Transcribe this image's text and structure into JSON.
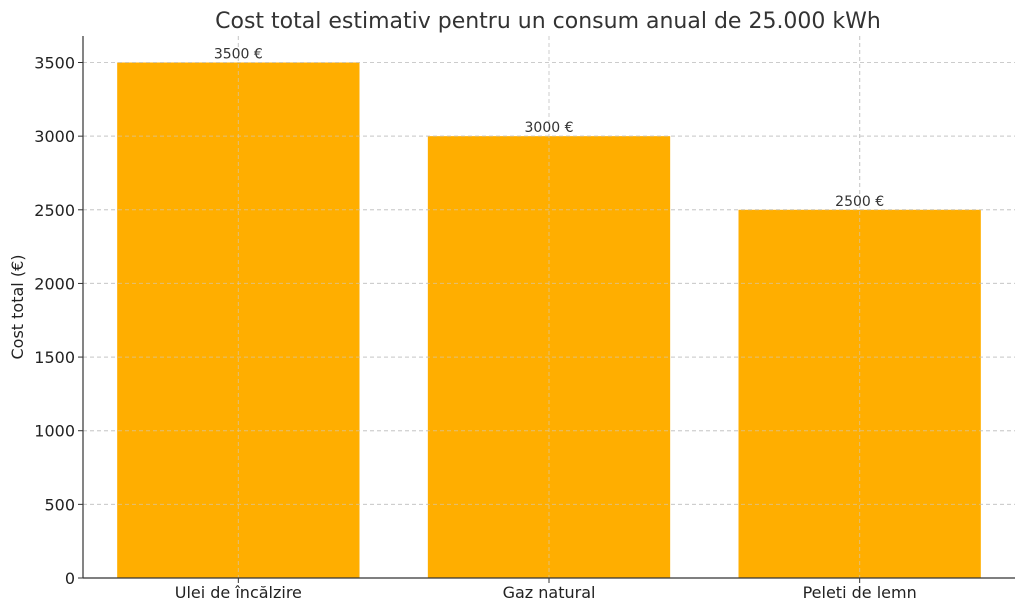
{
  "chart_data": {
    "type": "bar",
    "title": "Cost total estimativ pentru un consum anual de 25.000 kWh",
    "xlabel": "",
    "ylabel": "Cost total (€)",
    "categories": [
      "Ulei de încălzire",
      "Gaz natural",
      "Peleti de lemn"
    ],
    "values": [
      3500,
      3000,
      2500
    ],
    "data_labels": [
      "3500 €",
      "3000 €",
      "2500 €"
    ],
    "ylim": [
      0,
      3680
    ],
    "yticks": [
      0,
      500,
      1000,
      1500,
      2000,
      2500,
      3000,
      3500
    ],
    "grid": true,
    "bar_color": "#FFAE00"
  }
}
